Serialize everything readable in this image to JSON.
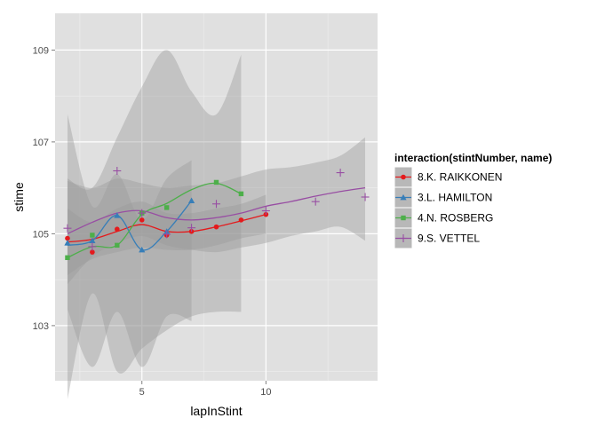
{
  "chart_data": {
    "type": "scatter",
    "subtype": "scatter with loess smooth lines and confidence bands",
    "xlabel": "lapInStint",
    "ylabel": "stime",
    "xlim": [
      1.5,
      14.5
    ],
    "ylim": [
      101.8,
      109.8
    ],
    "x_ticks": [
      5,
      10
    ],
    "y_ticks": [
      103,
      105,
      107,
      109
    ],
    "x_tick_labels": [
      "5",
      "10"
    ],
    "y_tick_labels": [
      "103",
      "105",
      "107",
      "109"
    ],
    "grid": true,
    "panel_background": "#e0e0e0",
    "legend_title": "interaction(stintNumber, name)",
    "legend_position": "right",
    "series": [
      {
        "name": "8.K. RAIKKONEN",
        "color": "#e41a1c",
        "marker": "circle",
        "x": [
          2,
          3,
          4,
          5,
          6,
          7,
          8,
          9,
          10
        ],
        "y": [
          104.9,
          104.6,
          105.1,
          105.3,
          104.97,
          105.05,
          105.15,
          105.3,
          105.42
        ],
        "smooth": [
          [
            2,
            104.82
          ],
          [
            3,
            104.88
          ],
          [
            4,
            105.05
          ],
          [
            5,
            105.2
          ],
          [
            6,
            105.05
          ],
          [
            7,
            105.05
          ],
          [
            8,
            105.15
          ],
          [
            9,
            105.28
          ],
          [
            10,
            105.42
          ]
        ]
      },
      {
        "name": "3.L. HAMILTON",
        "color": "#377eb8",
        "marker": "triangle",
        "x": [
          2,
          3,
          4,
          5,
          6,
          7
        ],
        "y": [
          104.8,
          104.85,
          105.4,
          104.65,
          105.05,
          105.72
        ],
        "smooth": [
          [
            2,
            104.75
          ],
          [
            3,
            104.85
          ],
          [
            4,
            105.4
          ],
          [
            5,
            104.65
          ],
          [
            6,
            105.05
          ],
          [
            7,
            105.72
          ]
        ]
      },
      {
        "name": "4.N. ROSBERG",
        "color": "#4daf4a",
        "marker": "square",
        "x": [
          2,
          3,
          4,
          5,
          6,
          8,
          9
        ],
        "y": [
          104.48,
          104.97,
          104.75,
          105.45,
          105.57,
          106.12,
          105.87
        ],
        "smooth": [
          [
            2,
            104.48
          ],
          [
            3,
            104.72
          ],
          [
            4,
            104.75
          ],
          [
            5,
            105.42
          ],
          [
            6,
            105.66
          ],
          [
            7,
            105.96
          ],
          [
            8,
            106.1
          ],
          [
            9,
            105.87
          ]
        ]
      },
      {
        "name": "9.S. VETTEL",
        "color": "#984ea3",
        "marker": "plus",
        "x": [
          2,
          3,
          4,
          5,
          6,
          7,
          8,
          10,
          12,
          13,
          14
        ],
        "y": [
          105.12,
          104.72,
          106.37,
          105.45,
          104.99,
          105.13,
          105.65,
          105.5,
          105.7,
          106.33,
          105.8
        ],
        "smooth": [
          [
            2,
            105.0
          ],
          [
            3,
            105.25
          ],
          [
            4,
            105.45
          ],
          [
            5,
            105.5
          ],
          [
            6,
            105.35
          ],
          [
            7,
            105.3
          ],
          [
            8,
            105.35
          ],
          [
            9,
            105.45
          ],
          [
            10,
            105.6
          ],
          [
            11,
            105.7
          ],
          [
            12,
            105.82
          ],
          [
            13,
            105.92
          ],
          [
            14,
            106.0
          ]
        ]
      }
    ],
    "bands": [
      {
        "series": "8.K. RAIKKONEN",
        "x": [
          2,
          3,
          4,
          5,
          6,
          7,
          8,
          9,
          10
        ],
        "upper": [
          105.55,
          105.25,
          105.55,
          105.7,
          105.45,
          105.45,
          105.55,
          105.65,
          105.85
        ],
        "lower": [
          104.1,
          104.45,
          104.6,
          104.7,
          104.65,
          104.65,
          104.75,
          104.9,
          105.0
        ]
      },
      {
        "series": "3.L. HAMILTON",
        "x": [
          2,
          3,
          4,
          5,
          6,
          7
        ],
        "upper": [
          107.6,
          105.6,
          106.3,
          105.3,
          106.2,
          106.6
        ],
        "lower": [
          103.35,
          102.1,
          103.3,
          102.1,
          103.2,
          103.1
        ]
      },
      {
        "series": "4.N. ROSBERG",
        "x": [
          2,
          3,
          4,
          5,
          6,
          7,
          8,
          9
        ],
        "upper": [
          106.2,
          106.0,
          107.1,
          108.2,
          109.0,
          108.1,
          107.6,
          108.9
        ],
        "lower": [
          101.4,
          103.7,
          102.0,
          102.5,
          102.9,
          103.2,
          103.3,
          103.3
        ]
      },
      {
        "series": "9.S. VETTEL",
        "x": [
          2,
          3,
          4,
          5,
          6,
          7,
          8,
          9,
          10,
          11,
          12,
          13,
          14
        ],
        "upper": [
          106.15,
          106.0,
          106.2,
          106.1,
          106.0,
          106.05,
          106.1,
          106.25,
          106.4,
          106.45,
          106.55,
          106.7,
          107.1
        ],
        "lower": [
          103.9,
          104.5,
          104.8,
          104.95,
          104.75,
          104.65,
          104.6,
          104.7,
          104.8,
          104.95,
          105.05,
          105.15,
          104.85
        ]
      }
    ]
  }
}
